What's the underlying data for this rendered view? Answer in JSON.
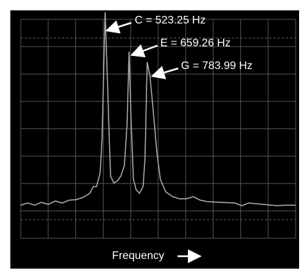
{
  "chart_data": {
    "type": "line",
    "xlabel": "Frequency",
    "color": "#b0b0b0",
    "xlim": [
      0,
      10
    ],
    "ylim": [
      0,
      8
    ],
    "x": [
      0,
      0.25,
      0.5,
      0.75,
      1.0,
      1.26,
      1.51,
      1.76,
      2.01,
      2.26,
      2.51,
      2.64,
      2.76,
      2.89,
      2.96,
      3.02,
      3.07,
      3.14,
      3.22,
      3.27,
      3.39,
      3.52,
      3.64,
      3.77,
      3.87,
      3.94,
      4.02,
      4.1,
      4.2,
      4.32,
      4.45,
      4.52,
      4.6,
      4.7,
      4.82,
      4.95,
      5.08,
      5.28,
      5.53,
      5.78,
      6.03,
      6.28,
      6.53,
      6.78,
      7.29,
      7.79,
      8.04,
      8.29,
      8.79,
      9.3,
      9.67,
      10.0
    ],
    "values": [
      1.21,
      1.29,
      1.21,
      1.31,
      1.24,
      1.36,
      1.29,
      1.39,
      1.41,
      1.49,
      1.64,
      1.89,
      1.89,
      2.4,
      3.66,
      6.19,
      8.26,
      6.19,
      3.66,
      2.27,
      2.02,
      2.1,
      2.27,
      2.65,
      4.17,
      6.82,
      4.17,
      2.15,
      1.77,
      1.64,
      1.89,
      2.9,
      6.44,
      5.93,
      4.67,
      3.16,
      2.15,
      1.69,
      1.52,
      1.44,
      1.44,
      1.52,
      1.39,
      1.34,
      1.31,
      1.29,
      1.19,
      1.29,
      1.24,
      1.19,
      1.21,
      1.21
    ],
    "annotations": [
      "C = 523.25 Hz",
      "E = 659.26 Hz",
      "G = 783.99 Hz"
    ]
  }
}
